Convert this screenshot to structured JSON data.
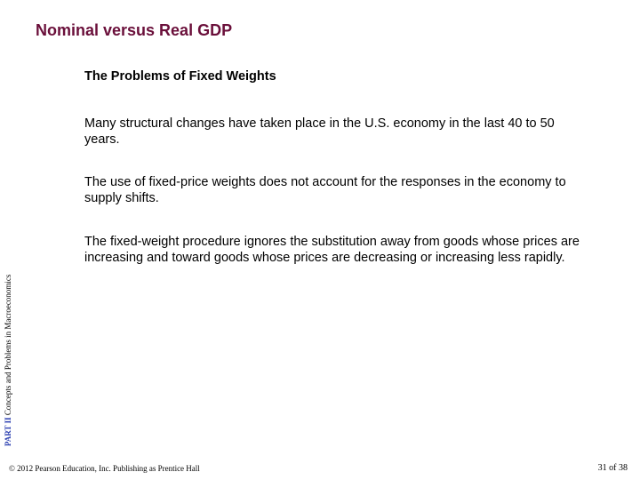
{
  "title": {
    "text": "Nominal versus Real GDP",
    "color": "#6a0f3a",
    "fontsize": 18,
    "fontweight": "bold"
  },
  "subtitle": {
    "text": "The Problems of Fixed Weights",
    "color": "#000000",
    "fontsize": 14.5,
    "fontweight": "bold"
  },
  "paragraphs": [
    "Many structural changes have taken place in the U.S. economy in the last 40 to 50 years.",
    "The use of fixed-price weights does not account for the responses in the economy to supply shifts.",
    "The fixed-weight procedure ignores the substitution away from goods whose prices are increasing and toward goods whose prices are decreasing or increasing less rapidly."
  ],
  "body_style": {
    "color": "#000000",
    "fontsize": 14.5,
    "line_height": 1.25
  },
  "side_label": {
    "part": "PART II",
    "rest": "  Concepts and Problems in Macroeconomics",
    "part_color": "#2b3fb0",
    "rest_color": "#000000",
    "fontsize": 9
  },
  "copyright": {
    "text": "© 2012 Pearson Education, Inc. Publishing as Prentice Hall",
    "color": "#000000",
    "fontsize": 9
  },
  "pager": {
    "text": "31 of 38",
    "color": "#000000",
    "fontsize": 10
  },
  "background_color": "#ffffff"
}
